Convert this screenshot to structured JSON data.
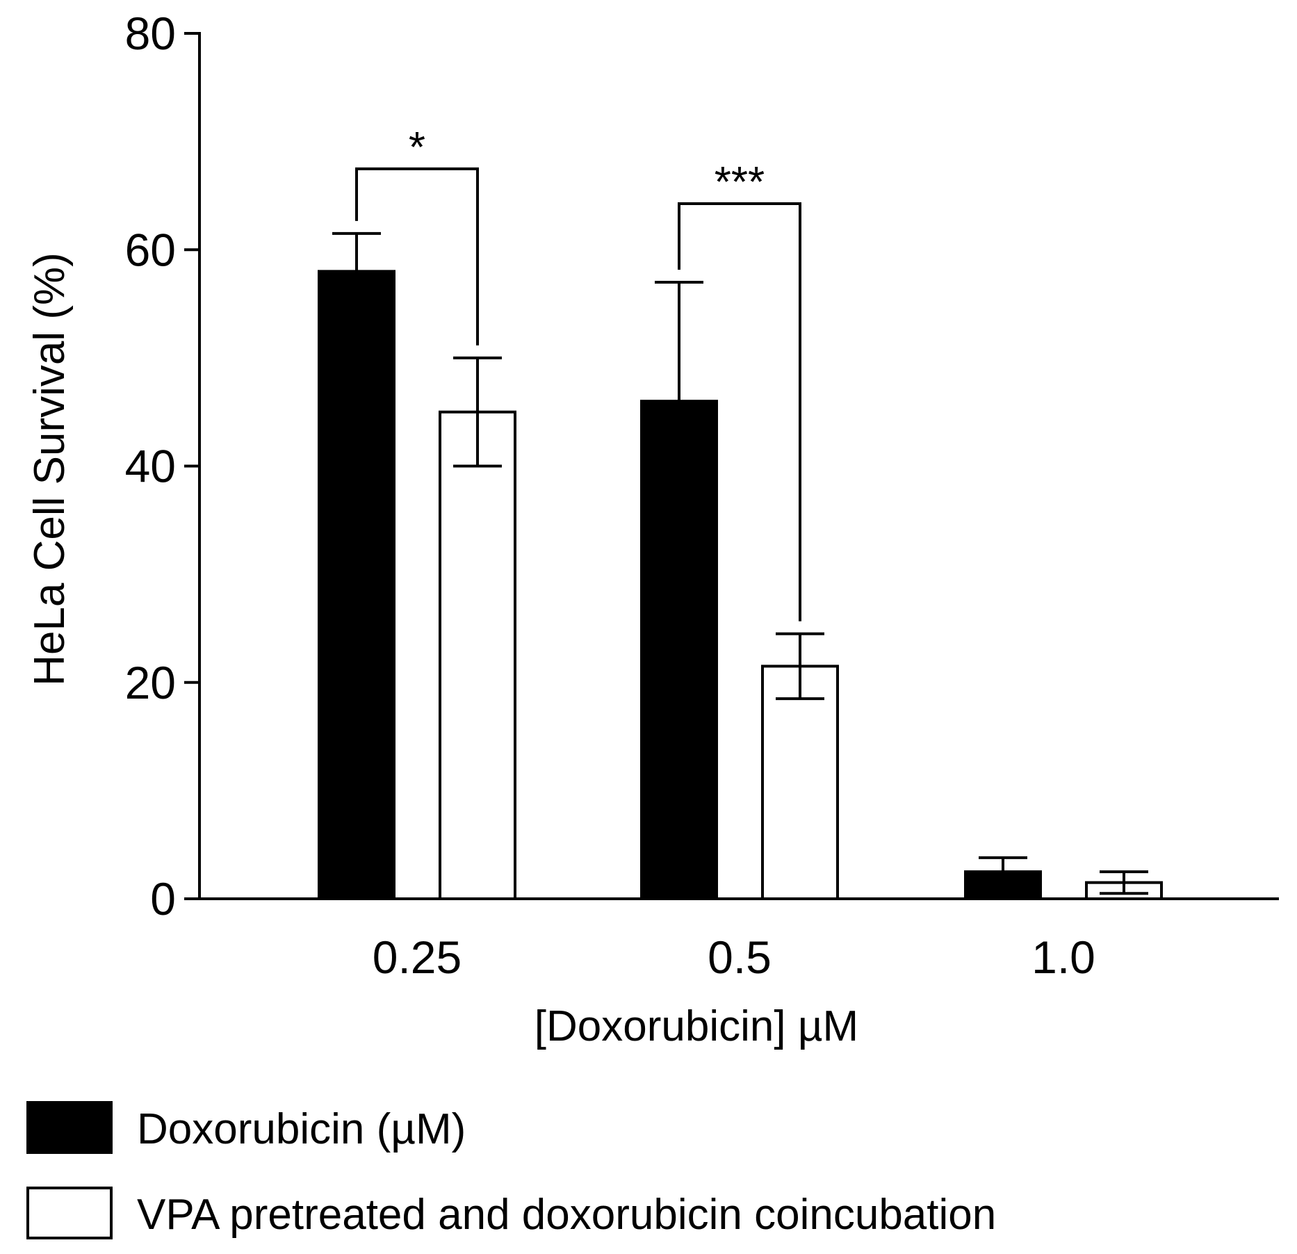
{
  "chart_data": {
    "type": "bar",
    "title": "",
    "xlabel": "[Doxorubicin] µM",
    "ylabel": "HeLa Cell Survival (%)",
    "ylim": [
      0,
      80
    ],
    "yticks": [
      0,
      20,
      40,
      60,
      80
    ],
    "grid": false,
    "categories": [
      "0.25",
      "0.5",
      "1.0"
    ],
    "series": [
      {
        "name": "Doxorubicin (µM)",
        "fill": "#000000",
        "values": [
          58,
          46,
          2.5
        ],
        "errors": [
          3.5,
          11,
          1.3
        ]
      },
      {
        "name": "VPA pretreated and doxorubicin coincubation",
        "fill": "#ffffff",
        "values": [
          45,
          21.5,
          1.5
        ],
        "errors": [
          5,
          3,
          1
        ]
      }
    ],
    "significance": [
      {
        "category": "0.25",
        "label": "*"
      },
      {
        "category": "0.5",
        "label": "***"
      }
    ],
    "legend": {
      "position": "bottom-left"
    }
  }
}
